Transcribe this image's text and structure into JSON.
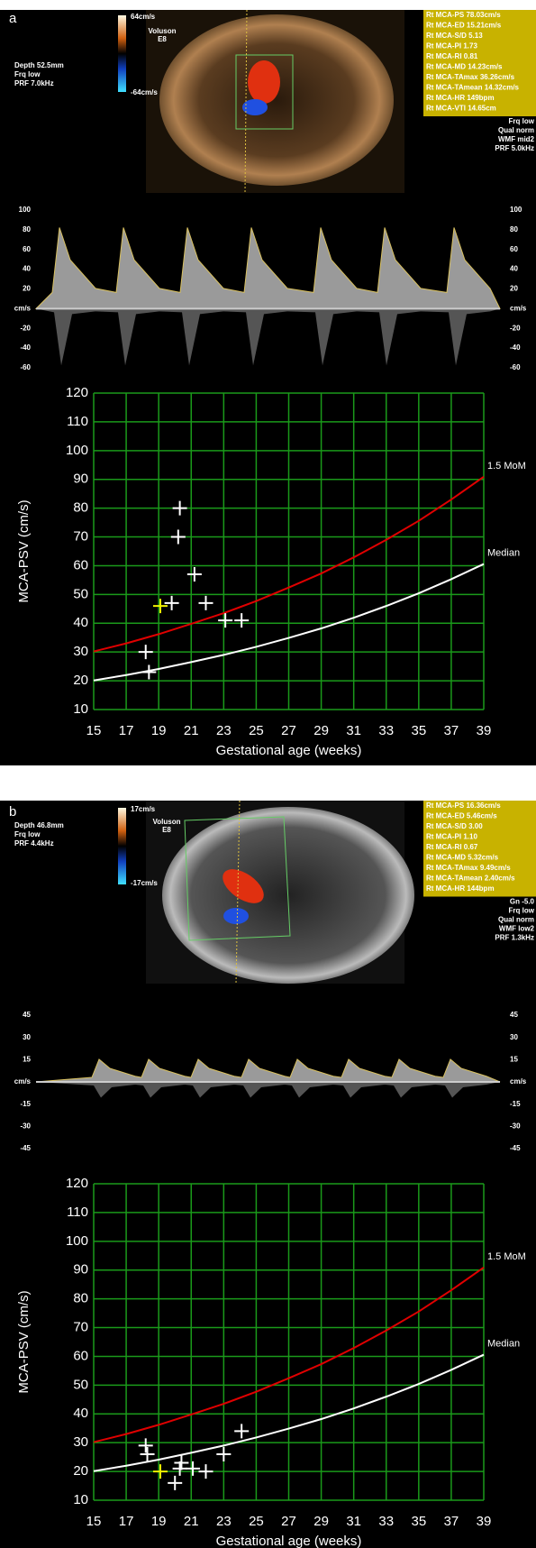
{
  "panels": [
    {
      "label": "a",
      "left_info": [
        "Depth 52.5mm",
        "Frq low",
        "PRF 7.0kHz"
      ],
      "color_scale": [
        "64cm/s",
        "-64cm/s"
      ],
      "probe": [
        "Voluson",
        "E8"
      ],
      "measurements": [
        "Rt MCA-PS 78.03cm/s",
        "Rt MCA-ED 15.21cm/s",
        "Rt MCA-S/D 5.13",
        "Rt MCA-PI 1.73",
        "Rt MCA-RI 0.81",
        "Rt MCA-MD 14.23cm/s",
        "Rt MCA-TAmax 36.26cm/s",
        "Rt MCA-TAmean 14.32cm/s",
        "Rt MCA-HR 149bpm",
        "Rt MCA-VTI 14.65cm"
      ],
      "settings": [
        "Frq low",
        "Qual norm",
        "WMF mid2",
        "PRF 5.0kHz"
      ],
      "doppler_ticks": [
        100,
        80,
        60,
        40,
        20,
        "cm/s",
        -20,
        -40,
        -60
      ]
    },
    {
      "label": "b",
      "left_info": [
        "Depth 46.8mm",
        "Frq low",
        "PRF 4.4kHz"
      ],
      "color_scale": [
        "17cm/s",
        "-17cm/s"
      ],
      "probe": [
        "Voluson",
        "E8"
      ],
      "measurements": [
        "Rt MCA-PS 16.36cm/s",
        "Rt MCA-ED 5.46cm/s",
        "Rt MCA-S/D 3.00",
        "Rt MCA-PI 1.10",
        "Rt MCA-RI 0.67",
        "Rt MCA-MD 5.32cm/s",
        "Rt MCA-TAmax 9.49cm/s",
        "Rt MCA-TAmean 2.40cm/s",
        "Rt MCA-HR 144bpm"
      ],
      "settings": [
        "Gn -5.0",
        "Frq low",
        "Qual norm",
        "WMF low2",
        "PRF 1.3kHz"
      ],
      "doppler_ticks": [
        45,
        30,
        15,
        "cm/s",
        -15,
        -30,
        -45
      ]
    }
  ],
  "chart_data": [
    {
      "type": "line",
      "x_label": "Gestational age (weeks)",
      "y_label": "MCA-PSV (cm/s)",
      "xlim": [
        15,
        39
      ],
      "xticks": [
        15,
        17,
        19,
        21,
        23,
        25,
        27,
        29,
        31,
        33,
        35,
        37,
        39
      ],
      "ylim": [
        10,
        120
      ],
      "yticks": [
        10,
        20,
        30,
        40,
        50,
        60,
        70,
        80,
        90,
        100,
        110,
        120
      ],
      "grid": true,
      "grid_color": "#1a9a1a",
      "series": [
        {
          "name": "1.5 MoM",
          "color": "#e00000",
          "x": [
            15,
            17,
            19,
            21,
            23,
            25,
            27,
            29,
            31,
            33,
            35,
            37,
            39
          ],
          "values": [
            30.2,
            33.0,
            36.2,
            39.8,
            43.5,
            47.7,
            52.4,
            57.3,
            62.9,
            69.0,
            75.6,
            83.0,
            90.9
          ]
        },
        {
          "name": "Median",
          "color": "#ffffff",
          "x": [
            15,
            17,
            19,
            21,
            23,
            25,
            27,
            29,
            31,
            33,
            35,
            37,
            39
          ],
          "values": [
            20.1,
            22.0,
            24.1,
            26.5,
            29.0,
            31.8,
            34.9,
            38.2,
            41.9,
            46.0,
            50.4,
            55.3,
            60.6
          ]
        }
      ],
      "points": [
        {
          "color": "#ffffff",
          "x": [
            18.2,
            18.4,
            19.8,
            20.2,
            20.3,
            21.2,
            21.9,
            23.1,
            24.1
          ],
          "values": [
            30,
            23,
            47,
            70,
            80,
            57,
            47,
            41,
            41
          ]
        },
        {
          "color": "#f0f000",
          "x": [
            19.1
          ],
          "values": [
            46
          ]
        }
      ]
    },
    {
      "type": "line",
      "x_label": "Gestational age (weeks)",
      "y_label": "MCA-PSV (cm/s)",
      "xlim": [
        15,
        39
      ],
      "xticks": [
        15,
        17,
        19,
        21,
        23,
        25,
        27,
        29,
        31,
        33,
        35,
        37,
        39
      ],
      "ylim": [
        10,
        120
      ],
      "yticks": [
        10,
        20,
        30,
        40,
        50,
        60,
        70,
        80,
        90,
        100,
        110,
        120
      ],
      "grid": true,
      "grid_color": "#1a9a1a",
      "series": [
        {
          "name": "1.5 MoM",
          "color": "#e00000",
          "x": [
            15,
            17,
            19,
            21,
            23,
            25,
            27,
            29,
            31,
            33,
            35,
            37,
            39
          ],
          "values": [
            30.2,
            33.0,
            36.2,
            39.8,
            43.5,
            47.7,
            52.4,
            57.3,
            62.9,
            69.0,
            75.6,
            83.0,
            90.9
          ]
        },
        {
          "name": "Median",
          "color": "#ffffff",
          "x": [
            15,
            17,
            19,
            21,
            23,
            25,
            27,
            29,
            31,
            33,
            35,
            37,
            39
          ],
          "values": [
            20.1,
            22.0,
            24.1,
            26.5,
            29.0,
            31.8,
            34.9,
            38.2,
            41.9,
            46.0,
            50.4,
            55.3,
            60.6
          ]
        }
      ],
      "points": [
        {
          "color": "#ffffff",
          "x": [
            18.2,
            18.3,
            20.0,
            20.3,
            20.4,
            21.1,
            21.9,
            23.0,
            24.1
          ],
          "values": [
            29,
            26,
            16,
            21,
            23,
            21,
            20,
            26,
            34
          ]
        },
        {
          "color": "#f0f000",
          "x": [
            19.1
          ],
          "values": [
            20
          ]
        }
      ]
    }
  ]
}
